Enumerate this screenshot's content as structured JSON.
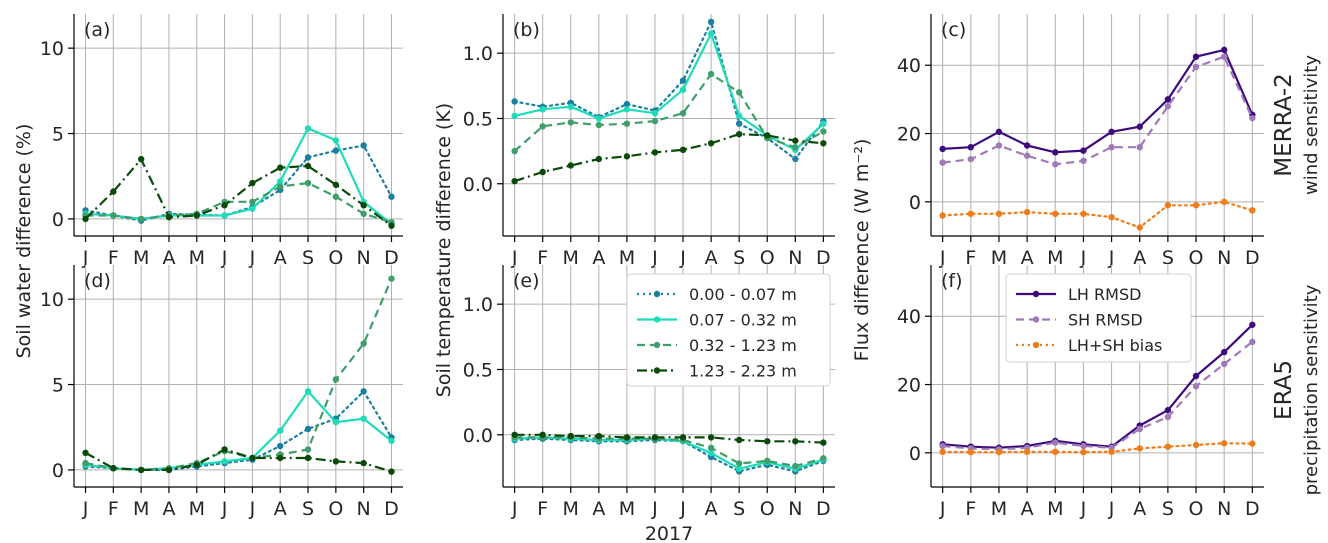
{
  "months": [
    "J",
    "F",
    "M",
    "A",
    "M",
    "J",
    "J",
    "A",
    "S",
    "O",
    "N",
    "D"
  ],
  "xlabel": "2017",
  "ylabels": {
    "soil_water": "Soil water difference (%)",
    "soil_temp": "Soil temperature difference (K)",
    "flux": "Flux difference (W m⁻²)"
  },
  "rows": [
    {
      "title": "MERRA-2",
      "subtitle": "wind sensitivity"
    },
    {
      "title": "ERA5",
      "subtitle": "precipitation sensitivity"
    }
  ],
  "colors": {
    "d1": "#1a7fa0",
    "d2": "#1fdcb8",
    "d3": "#3f9e6a",
    "d4": "#0b4a0b",
    "lh": "#3d0a7e",
    "sh": "#a079b8",
    "bias": "#f07d1a"
  },
  "legends": {
    "depth": [
      "0.00 - 0.07 m",
      "0.07 - 0.32 m",
      "0.32 - 1.23 m",
      "1.23 - 2.23 m"
    ],
    "flux": [
      "LH RMSD",
      "SH RMSD",
      "LH+SH bias"
    ]
  },
  "chart_data": [
    {
      "panel": "(a)",
      "type": "line",
      "ylim": [
        -1,
        12
      ],
      "yticks": [
        0,
        5,
        10
      ],
      "series": [
        {
          "name": "0.00 - 0.07 m",
          "key": "d1",
          "dash": "dotted",
          "values": [
            0.5,
            0.2,
            -0.1,
            0.3,
            0.25,
            0.2,
            0.7,
            1.7,
            3.6,
            4.0,
            4.3,
            1.3
          ]
        },
        {
          "name": "0.07 - 0.32 m",
          "key": "d2",
          "dash": "solid",
          "values": [
            0.3,
            0.2,
            0.0,
            0.2,
            0.2,
            0.2,
            0.6,
            2.2,
            5.3,
            4.6,
            1.0,
            -0.3
          ]
        },
        {
          "name": "0.32 - 1.23 m",
          "key": "d3",
          "dash": "dashed",
          "values": [
            0.2,
            0.2,
            0.0,
            0.2,
            0.3,
            1.0,
            1.0,
            1.9,
            2.1,
            1.3,
            0.3,
            -0.2
          ]
        },
        {
          "name": "1.23 - 2.23 m",
          "key": "d4",
          "dash": "dashdot",
          "values": [
            0.0,
            1.6,
            3.5,
            0.1,
            0.2,
            0.8,
            2.1,
            3.0,
            3.1,
            2.0,
            0.8,
            -0.4
          ]
        }
      ]
    },
    {
      "panel": "(b)",
      "type": "line",
      "ylim": [
        -0.4,
        1.3
      ],
      "yticks": [
        0.0,
        0.5,
        1.0
      ],
      "series": [
        {
          "name": "0.00 - 0.07 m",
          "key": "d1",
          "dash": "dotted",
          "values": [
            0.63,
            0.59,
            0.62,
            0.51,
            0.61,
            0.56,
            0.79,
            1.24,
            0.46,
            0.35,
            0.19,
            0.48
          ]
        },
        {
          "name": "0.07 - 0.32 m",
          "key": "d2",
          "dash": "solid",
          "values": [
            0.52,
            0.57,
            0.59,
            0.5,
            0.57,
            0.54,
            0.72,
            1.15,
            0.52,
            0.37,
            0.26,
            0.46
          ]
        },
        {
          "name": "0.32 - 1.23 m",
          "key": "d3",
          "dash": "dashed",
          "values": [
            0.25,
            0.44,
            0.47,
            0.45,
            0.46,
            0.48,
            0.54,
            0.84,
            0.7,
            0.35,
            0.28,
            0.4
          ]
        },
        {
          "name": "1.23 - 2.23 m",
          "key": "d4",
          "dash": "dashdot",
          "values": [
            0.02,
            0.09,
            0.14,
            0.19,
            0.21,
            0.24,
            0.26,
            0.31,
            0.38,
            0.37,
            0.33,
            0.31
          ]
        }
      ]
    },
    {
      "panel": "(c)",
      "type": "line",
      "ylim": [
        -10,
        55
      ],
      "yticks": [
        0,
        20,
        40
      ],
      "series": [
        {
          "name": "LH RMSD",
          "key": "lh",
          "dash": "solid",
          "values": [
            15.5,
            16.0,
            20.5,
            16.5,
            14.5,
            15.0,
            20.5,
            22.0,
            30.0,
            42.5,
            44.5,
            25.5
          ]
        },
        {
          "name": "SH RMSD",
          "key": "sh",
          "dash": "dashed",
          "values": [
            11.5,
            12.5,
            16.5,
            13.5,
            11.0,
            12.0,
            16.0,
            16.0,
            28.0,
            39.5,
            42.5,
            24.5
          ]
        },
        {
          "name": "LH+SH bias",
          "key": "bias",
          "dash": "dotted",
          "values": [
            -4.0,
            -3.5,
            -3.5,
            -3.0,
            -3.5,
            -3.5,
            -4.5,
            -7.5,
            -1.0,
            -1.0,
            0.0,
            -2.5
          ]
        }
      ]
    },
    {
      "panel": "(d)",
      "type": "line",
      "ylim": [
        -1,
        12
      ],
      "yticks": [
        0,
        5,
        10
      ],
      "series": [
        {
          "name": "0.00 - 0.07 m",
          "key": "d1",
          "dash": "dotted",
          "values": [
            0.2,
            0.1,
            0.0,
            0.0,
            0.2,
            0.4,
            0.6,
            1.4,
            2.4,
            3.0,
            4.6,
            1.9
          ]
        },
        {
          "name": "0.07 - 0.32 m",
          "key": "d2",
          "dash": "solid",
          "values": [
            0.3,
            0.1,
            0.0,
            0.1,
            0.3,
            0.5,
            0.7,
            2.3,
            4.6,
            2.8,
            3.0,
            1.7
          ]
        },
        {
          "name": "0.32 - 1.23 m",
          "key": "d3",
          "dash": "dashed",
          "values": [
            0.4,
            0.1,
            0.0,
            0.1,
            0.4,
            1.1,
            0.7,
            0.9,
            1.2,
            5.3,
            7.4,
            11.2
          ]
        },
        {
          "name": "1.23 - 2.23 m",
          "key": "d4",
          "dash": "dashdot",
          "values": [
            1.0,
            0.1,
            0.0,
            0.0,
            0.3,
            1.2,
            0.7,
            0.7,
            0.7,
            0.5,
            0.4,
            -0.1
          ]
        }
      ]
    },
    {
      "panel": "(e)",
      "type": "line",
      "ylim": [
        -0.4,
        1.3
      ],
      "yticks": [
        0.0,
        0.5,
        1.0
      ],
      "series": [
        {
          "name": "0.00 - 0.07 m",
          "key": "d1",
          "dash": "dotted",
          "values": [
            -0.04,
            -0.03,
            -0.04,
            -0.05,
            -0.05,
            -0.04,
            -0.05,
            -0.17,
            -0.28,
            -0.23,
            -0.28,
            -0.2
          ]
        },
        {
          "name": "0.07 - 0.32 m",
          "key": "d2",
          "dash": "solid",
          "values": [
            -0.03,
            -0.02,
            -0.03,
            -0.04,
            -0.04,
            -0.03,
            -0.05,
            -0.14,
            -0.26,
            -0.21,
            -0.26,
            -0.19
          ]
        },
        {
          "name": "0.32 - 1.23 m",
          "key": "d3",
          "dash": "dashed",
          "values": [
            -0.02,
            -0.02,
            -0.02,
            -0.03,
            -0.03,
            -0.03,
            -0.04,
            -0.1,
            -0.22,
            -0.2,
            -0.24,
            -0.18
          ]
        },
        {
          "name": "1.23 - 2.23 m",
          "key": "d4",
          "dash": "dashdot",
          "values": [
            0.0,
            0.0,
            -0.01,
            -0.01,
            -0.02,
            -0.02,
            -0.02,
            -0.02,
            -0.04,
            -0.05,
            -0.05,
            -0.06
          ]
        }
      ]
    },
    {
      "panel": "(f)",
      "type": "line",
      "ylim": [
        -10,
        55
      ],
      "yticks": [
        0,
        20,
        40
      ],
      "series": [
        {
          "name": "LH RMSD",
          "key": "lh",
          "dash": "solid",
          "values": [
            2.5,
            1.8,
            1.5,
            2.0,
            3.5,
            2.5,
            1.8,
            8.0,
            12.5,
            22.5,
            29.5,
            37.5
          ]
        },
        {
          "name": "SH RMSD",
          "key": "sh",
          "dash": "dashed",
          "values": [
            2.0,
            1.3,
            1.0,
            1.5,
            3.0,
            2.0,
            1.5,
            7.0,
            10.5,
            19.5,
            26.0,
            32.5
          ]
        },
        {
          "name": "LH+SH bias",
          "key": "bias",
          "dash": "dotted",
          "values": [
            0.3,
            0.2,
            0.2,
            0.3,
            0.3,
            0.2,
            0.3,
            1.3,
            1.8,
            2.3,
            2.8,
            2.7
          ]
        }
      ]
    }
  ]
}
